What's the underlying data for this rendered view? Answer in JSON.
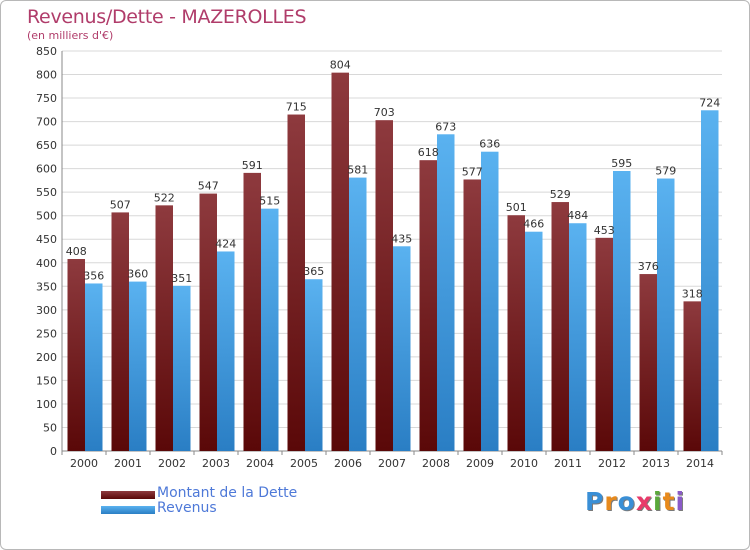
{
  "title": "Revenus/Dette - MAZEROLLES",
  "subtitle": "(en milliers d'€)",
  "logo": {
    "text": "Proxiti",
    "letter_colors": [
      "#3a8fd6",
      "#e88a1c",
      "#3a8fd6",
      "#e83a6a",
      "#5aa83a",
      "#e88a1c",
      "#8a5ac8"
    ]
  },
  "chart_data": {
    "type": "bar",
    "title": "Revenus/Dette - MAZEROLLES",
    "subtitle": "(en milliers d'€)",
    "categories": [
      "2000",
      "2001",
      "2002",
      "2003",
      "2004",
      "2005",
      "2006",
      "2007",
      "2008",
      "2009",
      "2010",
      "2011",
      "2012",
      "2013",
      "2014"
    ],
    "series": [
      {
        "name": "Montant de la Dette",
        "color": "#7a1e22",
        "values": [
          408,
          507,
          522,
          547,
          591,
          715,
          804,
          703,
          618,
          577,
          501,
          529,
          453,
          376,
          318
        ]
      },
      {
        "name": "Revenus",
        "color": "#4aa3e6",
        "values": [
          356,
          360,
          351,
          424,
          515,
          365,
          581,
          435,
          673,
          636,
          466,
          484,
          595,
          579,
          724
        ]
      }
    ],
    "yticks": [
      0,
      50,
      100,
      150,
      200,
      250,
      300,
      350,
      400,
      450,
      500,
      550,
      600,
      650,
      700,
      750,
      800,
      850
    ],
    "ylim": [
      0,
      850
    ],
    "grid": true,
    "legend_position": "bottom-left"
  }
}
